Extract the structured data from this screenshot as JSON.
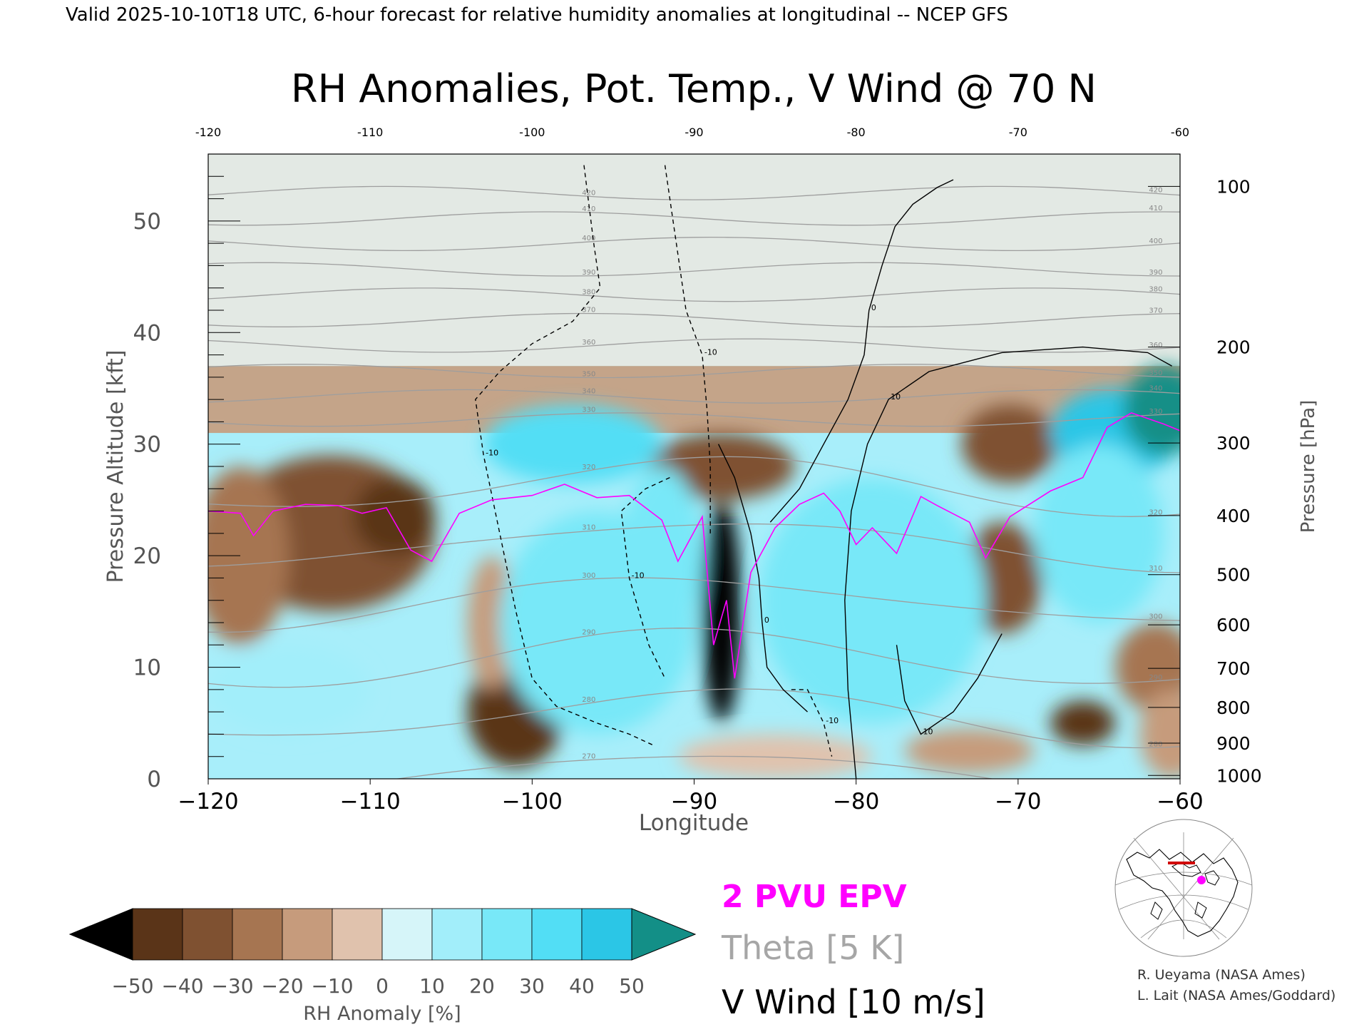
{
  "header": {
    "valid_line": "Valid 2025-10-10T18 UTC, 6-hour forecast for relative humidity anomalies at longitudinal -- NCEP GFS"
  },
  "chart_data": {
    "type": "heatmap",
    "title": "RH Anomalies, Pot. Temp., V Wind @ 70 N",
    "xlabel": "Longitude",
    "ylabel_left": "Pressure Altitude [kft]",
    "ylabel_right": "Pressure [hPa]",
    "xlim": [
      -120,
      -60
    ],
    "ylim": [
      0,
      56
    ],
    "x_ticks": [
      -120,
      -110,
      -100,
      -90,
      -80,
      -70,
      -60
    ],
    "y_ticks_left": [
      0,
      10,
      20,
      30,
      40,
      50
    ],
    "top_tick_labels": [
      "-120",
      "-110",
      "-100",
      "-90",
      "-80",
      "-70",
      "-60"
    ],
    "right_axis_ticks": [
      {
        "hPa": 100,
        "kft": 53.1
      },
      {
        "hPa": 200,
        "kft": 38.7
      },
      {
        "hPa": 300,
        "kft": 30.1
      },
      {
        "hPa": 400,
        "kft": 23.6
      },
      {
        "hPa": 500,
        "kft": 18.3
      },
      {
        "hPa": 600,
        "kft": 13.8
      },
      {
        "hPa": 700,
        "kft": 9.9
      },
      {
        "hPa": 800,
        "kft": 6.4
      },
      {
        "hPa": 900,
        "kft": 3.2
      },
      {
        "hPa": 1000,
        "kft": 0.3
      }
    ],
    "rh_anomaly_blobs": [
      {
        "lon": -112.5,
        "alt": 22,
        "anom": -34,
        "rx": 6.5,
        "ry": 7
      },
      {
        "lon": -108.5,
        "alt": 23.5,
        "anom": -46,
        "rx": 2.5,
        "ry": 3.5
      },
      {
        "lon": -118,
        "alt": 20,
        "anom": -24,
        "rx": 3,
        "ry": 8
      },
      {
        "lon": -101,
        "alt": 6,
        "anom": -48,
        "rx": 3,
        "ry": 5
      },
      {
        "lon": -102.5,
        "alt": 14,
        "anom": -20,
        "rx": 1.5,
        "ry": 6
      },
      {
        "lon": -88.3,
        "alt": 15,
        "anom": -50,
        "rx": 1.2,
        "ry": 10
      },
      {
        "lon": -88.3,
        "alt": 28,
        "anom": -38,
        "rx": 4.5,
        "ry": 3
      },
      {
        "lon": -70.5,
        "alt": 30,
        "anom": -32,
        "rx": 3,
        "ry": 3.5
      },
      {
        "lon": -71,
        "alt": 18,
        "anom": -32,
        "rx": 2.5,
        "ry": 5
      },
      {
        "lon": -66,
        "alt": 5,
        "anom": -48,
        "rx": 2,
        "ry": 2
      },
      {
        "lon": -61.5,
        "alt": 10,
        "anom": -30,
        "rx": 2.5,
        "ry": 4
      },
      {
        "lon": -60.5,
        "alt": 4,
        "anom": -20,
        "rx": 2,
        "ry": 4
      },
      {
        "lon": -73,
        "alt": 2.5,
        "anom": -14,
        "rx": 4,
        "ry": 2
      },
      {
        "lon": -85,
        "alt": 2,
        "anom": -10,
        "rx": 6,
        "ry": 2
      },
      {
        "lon": -97.5,
        "alt": 30,
        "anom": 34,
        "rx": 5.5,
        "ry": 3.5
      },
      {
        "lon": -96,
        "alt": 14,
        "anom": 26,
        "rx": 6,
        "ry": 10
      },
      {
        "lon": -79,
        "alt": 16,
        "anom": 24,
        "rx": 7,
        "ry": 11
      },
      {
        "lon": -64,
        "alt": 31,
        "anom": 42,
        "rx": 4,
        "ry": 4
      },
      {
        "lon": -61,
        "alt": 33,
        "anom": 50,
        "rx": 2.5,
        "ry": 4
      },
      {
        "lon": -65,
        "alt": 22,
        "anom": 24,
        "rx": 4,
        "ry": 8
      },
      {
        "lon": -115,
        "alt": 8,
        "anom": 16,
        "rx": 5,
        "ry": 4
      },
      {
        "lon": -92,
        "alt": 20,
        "anom": 22,
        "rx": 2.5,
        "ry": 8
      }
    ],
    "upper_background_anom": -12,
    "theta_isentropes_K": [
      270,
      280,
      290,
      300,
      310,
      320,
      330,
      340,
      350,
      360,
      370,
      380,
      390,
      400,
      410,
      420
    ],
    "theta_labels": [
      "270",
      "280",
      "290",
      "300",
      "310",
      "320",
      "330",
      "340",
      "350",
      "360",
      "370",
      "380",
      "390",
      "400",
      "410",
      "420"
    ],
    "epv_2pvu_line": [
      [
        -120,
        24
      ],
      [
        -118,
        23.8
      ],
      [
        -117.2,
        21.8
      ],
      [
        -116,
        24
      ],
      [
        -114,
        24.6
      ],
      [
        -112,
        24.5
      ],
      [
        -110.5,
        23.8
      ],
      [
        -109,
        24.3
      ],
      [
        -107.5,
        20.5
      ],
      [
        -106.2,
        19.5
      ],
      [
        -104.5,
        23.8
      ],
      [
        -102.5,
        25
      ],
      [
        -100,
        25.4
      ],
      [
        -98,
        26.4
      ],
      [
        -96,
        25.2
      ],
      [
        -94,
        25.4
      ],
      [
        -92,
        23.2
      ],
      [
        -91,
        19.5
      ],
      [
        -89.5,
        23.5
      ],
      [
        -88.8,
        12
      ],
      [
        -88,
        16
      ],
      [
        -87.5,
        9
      ],
      [
        -86.5,
        18.5
      ],
      [
        -85,
        22.5
      ],
      [
        -83.5,
        24.6
      ],
      [
        -82,
        25.6
      ],
      [
        -81,
        24
      ],
      [
        -80,
        21
      ],
      [
        -79,
        22.5
      ],
      [
        -77.5,
        20.2
      ],
      [
        -76,
        25.3
      ],
      [
        -75,
        24.5
      ],
      [
        -73,
        23
      ],
      [
        -72,
        19.8
      ],
      [
        -70.5,
        23.5
      ],
      [
        -68,
        25.8
      ],
      [
        -66,
        27
      ],
      [
        -64.5,
        31.5
      ],
      [
        -63,
        32.8
      ],
      [
        -61,
        31.8
      ],
      [
        -60,
        31.2
      ]
    ],
    "vwind_contours": [
      {
        "label": "0",
        "style": "solid",
        "points": [
          [
            -85.3,
            23
          ],
          [
            -83.5,
            26
          ],
          [
            -82,
            30
          ],
          [
            -80.5,
            34
          ],
          [
            -79.5,
            38
          ],
          [
            -79.2,
            42
          ],
          [
            -78.4,
            46
          ],
          [
            -77.6,
            49.5
          ],
          [
            -76.5,
            51.5
          ],
          [
            -75,
            53
          ],
          [
            -74,
            53.7
          ]
        ]
      },
      {
        "label": "0",
        "style": "solid",
        "points": [
          [
            -88.5,
            30
          ],
          [
            -87.5,
            27
          ],
          [
            -86.5,
            22
          ],
          [
            -86,
            18
          ],
          [
            -85.8,
            14
          ],
          [
            -85.5,
            10
          ],
          [
            -84.5,
            8
          ],
          [
            -83,
            6
          ]
        ]
      },
      {
        "label": "10",
        "style": "solid",
        "points": [
          [
            -80,
            0
          ],
          [
            -80.5,
            8
          ],
          [
            -80.7,
            16
          ],
          [
            -80.3,
            24
          ],
          [
            -79.3,
            30
          ],
          [
            -78,
            34
          ],
          [
            -75.5,
            36.5
          ],
          [
            -71,
            38.2
          ],
          [
            -66,
            38.7
          ],
          [
            -62,
            38.2
          ],
          [
            -60.5,
            37
          ]
        ]
      },
      {
        "label": "10",
        "style": "solid",
        "points": [
          [
            -71,
            13
          ],
          [
            -72.5,
            9
          ],
          [
            -74,
            6
          ],
          [
            -76,
            4
          ],
          [
            -77,
            7
          ],
          [
            -77.5,
            12
          ]
        ]
      },
      {
        "label": "-10",
        "style": "dashed",
        "points": [
          [
            -96.8,
            55
          ],
          [
            -96.2,
            48
          ],
          [
            -95.8,
            44
          ],
          [
            -97.5,
            41
          ],
          [
            -100,
            39
          ],
          [
            -102,
            36.5
          ],
          [
            -103.5,
            34
          ],
          [
            -103,
            29
          ],
          [
            -102,
            22
          ],
          [
            -101,
            15
          ],
          [
            -100,
            9
          ],
          [
            -98.5,
            6.5
          ],
          [
            -96,
            5
          ],
          [
            -94,
            4
          ],
          [
            -92.5,
            3
          ]
        ]
      },
      {
        "label": "-10",
        "style": "dashed",
        "points": [
          [
            -91.8,
            55
          ],
          [
            -91,
            47
          ],
          [
            -90.5,
            42
          ],
          [
            -89.5,
            38
          ],
          [
            -89.2,
            33
          ],
          [
            -89,
            28
          ],
          [
            -89,
            22
          ]
        ]
      },
      {
        "label": "-10",
        "style": "dashed",
        "points": [
          [
            -91.5,
            27
          ],
          [
            -93,
            26
          ],
          [
            -94.5,
            24
          ],
          [
            -94,
            18
          ],
          [
            -92.8,
            12
          ],
          [
            -91.8,
            9
          ]
        ]
      },
      {
        "label": "-10",
        "style": "dashed",
        "points": [
          [
            -84,
            8
          ],
          [
            -83,
            8
          ],
          [
            -82,
            5
          ],
          [
            -81.5,
            2
          ]
        ]
      }
    ],
    "colorbar": {
      "label": "RH Anomaly [%]",
      "ticks": [
        "-50",
        "-40",
        "-30",
        "-20",
        "-10",
        "0",
        "10",
        "20",
        "30",
        "40",
        "50"
      ],
      "colors": [
        "#2e1a0c",
        "#5a3418",
        "#7f5131",
        "#a67551",
        "#c69b7c",
        "#e0c2ad",
        "#d6f5f9",
        "#a2eefa",
        "#78e8f8",
        "#52def5",
        "#2bc6e6",
        "#1992b6"
      ],
      "under_color": "#000000",
      "over_color": "#138f87"
    },
    "legend": {
      "epv": "2 PVU EPV",
      "theta": "Theta [5 K]",
      "vwind": "V Wind [10 m/s]",
      "epv_color": "#ff00ff",
      "theta_color": "#a6a6a6",
      "vwind_color": "#000000"
    }
  },
  "credits": {
    "line1": "R. Ueyama (NASA Ames)",
    "line2": "L. Lait (NASA Ames/Goddard)"
  }
}
